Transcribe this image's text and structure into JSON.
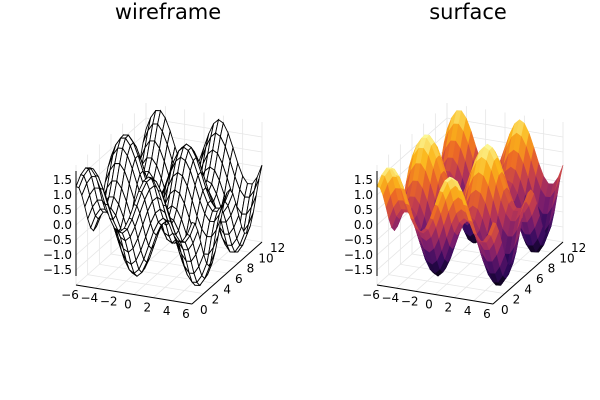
{
  "chart_data": [
    {
      "type": "surface",
      "style": "wireframe",
      "title": "wireframe",
      "function": "z = sin(x) + cos(y)",
      "x": {
        "ticks": [
          -6,
          -4,
          -2,
          0,
          2,
          4,
          6
        ],
        "tick_labels": [
          "−6",
          "−4",
          "−2",
          "0",
          "2",
          "4",
          "6"
        ],
        "range": [
          -6,
          6
        ]
      },
      "y": {
        "ticks": [
          0,
          2,
          4,
          6,
          8,
          10,
          12
        ],
        "tick_labels": [
          "0",
          "2",
          "4",
          "6",
          "8",
          "10",
          "12"
        ],
        "range": [
          0,
          12
        ]
      },
      "z": {
        "ticks": [
          -1.5,
          -1.0,
          -0.5,
          0.0,
          0.5,
          1.0,
          1.5
        ],
        "tick_labels": [
          "−1.5",
          "−1.0",
          "−0.5",
          "0.0",
          "0.5",
          "1.0",
          "1.5"
        ],
        "range": [
          -2,
          2
        ]
      },
      "line_color": "#000000",
      "grid": true,
      "legend": false
    },
    {
      "type": "surface",
      "style": "filled",
      "title": "surface",
      "function": "z = sin(x) + cos(y)",
      "x": {
        "ticks": [
          -6,
          -4,
          -2,
          0,
          2,
          4,
          6
        ],
        "tick_labels": [
          "−6",
          "−4",
          "−2",
          "0",
          "2",
          "4",
          "6"
        ],
        "range": [
          -6,
          6
        ]
      },
      "y": {
        "ticks": [
          0,
          2,
          4,
          6,
          8,
          10,
          12
        ],
        "tick_labels": [
          "0",
          "2",
          "4",
          "6",
          "8",
          "10",
          "12"
        ],
        "range": [
          0,
          12
        ]
      },
      "z": {
        "ticks": [
          -1.5,
          -1.0,
          -0.5,
          0.0,
          0.5,
          1.0,
          1.5
        ],
        "tick_labels": [
          "−1.5",
          "−1.0",
          "−0.5",
          "0.0",
          "0.5",
          "1.0",
          "1.5"
        ],
        "range": [
          -2,
          2
        ]
      },
      "colormap": "inferno",
      "colormap_stops": [
        "#000004",
        "#320a5e",
        "#781c6d",
        "#bb3754",
        "#ed6925",
        "#fbb61a",
        "#fcffa4"
      ],
      "grid": true,
      "legend": false
    }
  ]
}
